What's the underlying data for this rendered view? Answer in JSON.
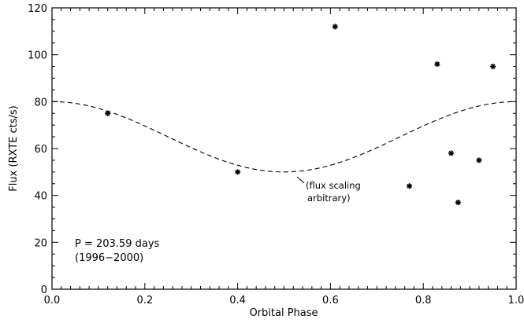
{
  "chart_data": {
    "type": "scatter",
    "xlabel": "Orbital Phase",
    "ylabel": "Flux (RXTE cts/s)",
    "xlim": [
      0.0,
      1.0
    ],
    "ylim": [
      0,
      120
    ],
    "x_ticks": [
      "0.0",
      "0.2",
      "0.4",
      "0.6",
      "0.8",
      "1.0"
    ],
    "y_ticks": [
      "0",
      "20",
      "40",
      "60",
      "80",
      "100",
      "120"
    ],
    "grid": false,
    "series": [
      {
        "marker": "asterisk",
        "points": [
          {
            "x": 0.12,
            "y": 75
          },
          {
            "x": 0.4,
            "y": 50
          },
          {
            "x": 0.61,
            "y": 112
          },
          {
            "x": 0.77,
            "y": 44
          },
          {
            "x": 0.83,
            "y": 96
          },
          {
            "x": 0.86,
            "y": 58
          },
          {
            "x": 0.875,
            "y": 37
          },
          {
            "x": 0.92,
            "y": 55
          },
          {
            "x": 0.95,
            "y": 95
          }
        ]
      },
      {
        "style": "dashed",
        "model": {
          "shape": "cosine",
          "mean": 65,
          "amplitude": 15,
          "peak_phase": 0.0
        }
      }
    ],
    "annotations": {
      "period_line1": "P = 203.59 days",
      "period_line2": "(1996−2000)",
      "flux_note_line1": "(flux scaling",
      "flux_note_line2": "arbitrary)"
    }
  }
}
